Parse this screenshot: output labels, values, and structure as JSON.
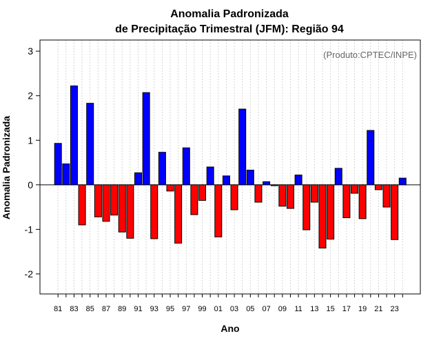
{
  "chart_data": {
    "type": "bar",
    "title": "Anomalia Padronizada",
    "subtitle": "de Precipitação Trimestral (JFM): Região 94",
    "xlabel": "Ano",
    "ylabel": "Anomalia Padronizada",
    "annotation": "(Produto:CPTEC/INPE)",
    "ylim": [
      -2.45,
      3.25
    ],
    "yticks": [
      -2,
      -1,
      0,
      1,
      2,
      3
    ],
    "categories": [
      "81",
      "82",
      "83",
      "84",
      "85",
      "86",
      "87",
      "88",
      "89",
      "90",
      "91",
      "92",
      "93",
      "94",
      "95",
      "96",
      "97",
      "98",
      "99",
      "00",
      "01",
      "02",
      "03",
      "04",
      "05",
      "06",
      "07",
      "08",
      "09",
      "10",
      "11",
      "12",
      "13",
      "14",
      "15",
      "16",
      "17",
      "18",
      "19",
      "20",
      "21",
      "22",
      "23",
      "24"
    ],
    "xtick_labels": [
      "81",
      "83",
      "85",
      "87",
      "89",
      "91",
      "93",
      "95",
      "97",
      "99",
      "01",
      "03",
      "05",
      "07",
      "09",
      "11",
      "13",
      "15",
      "17",
      "19",
      "21",
      "23"
    ],
    "values": [
      0.93,
      0.47,
      2.22,
      -0.9,
      1.83,
      -0.72,
      -0.82,
      -0.68,
      -1.06,
      -1.2,
      0.27,
      2.07,
      -1.21,
      0.73,
      -0.14,
      -1.31,
      0.83,
      -0.67,
      -0.35,
      0.4,
      -1.17,
      0.2,
      -0.56,
      1.7,
      0.33,
      -0.39,
      0.07,
      -0.02,
      -0.48,
      -0.53,
      0.22,
      -1.01,
      -0.39,
      -1.42,
      -1.22,
      0.37,
      -0.74,
      -0.19,
      -0.76,
      1.22,
      -0.11,
      -0.5,
      -1.23,
      0.15
    ],
    "colors": {
      "positive": "#0000ff",
      "negative": "#ff0000",
      "grid": "#d3d3d3",
      "border": "#000000"
    },
    "grid": true
  }
}
